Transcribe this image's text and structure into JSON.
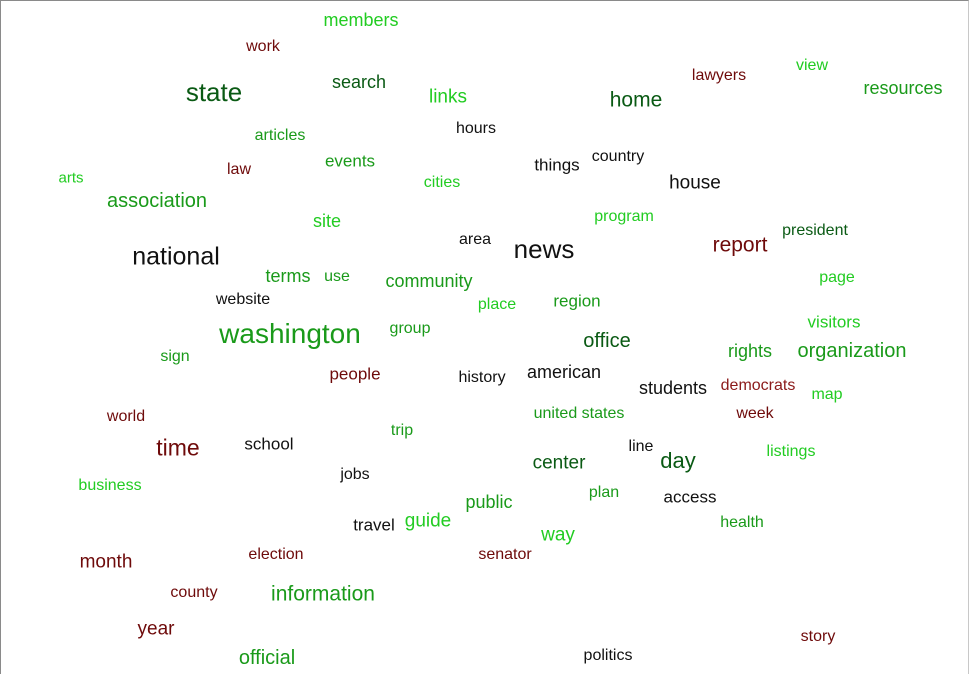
{
  "colors": {
    "black": "#111111",
    "dark_green": "#0a5a14",
    "green": "#1a9a1a",
    "bright_green": "#22cc22",
    "dark_red": "#6e0a0a",
    "red": "#8b1a1a"
  },
  "words": [
    {
      "text": "members",
      "color": "bright_green"
    },
    {
      "text": "work",
      "color": "dark_red"
    },
    {
      "text": "lawyers",
      "color": "dark_red"
    },
    {
      "text": "view",
      "color": "bright_green"
    },
    {
      "text": "resources",
      "color": "green"
    },
    {
      "text": "state",
      "color": "dark_green"
    },
    {
      "text": "search",
      "color": "dark_green"
    },
    {
      "text": "links",
      "color": "bright_green"
    },
    {
      "text": "home",
      "color": "dark_green"
    },
    {
      "text": "hours",
      "color": "black"
    },
    {
      "text": "articles",
      "color": "green"
    },
    {
      "text": "events",
      "color": "green"
    },
    {
      "text": "law",
      "color": "dark_red"
    },
    {
      "text": "things",
      "color": "black"
    },
    {
      "text": "country",
      "color": "black"
    },
    {
      "text": "arts",
      "color": "bright_green"
    },
    {
      "text": "cities",
      "color": "bright_green"
    },
    {
      "text": "house",
      "color": "black"
    },
    {
      "text": "association",
      "color": "green"
    },
    {
      "text": "site",
      "color": "bright_green"
    },
    {
      "text": "program",
      "color": "bright_green"
    },
    {
      "text": "president",
      "color": "dark_green"
    },
    {
      "text": "area",
      "color": "black"
    },
    {
      "text": "news",
      "color": "black"
    },
    {
      "text": "report",
      "color": "dark_red"
    },
    {
      "text": "national",
      "color": "black"
    },
    {
      "text": "terms",
      "color": "green"
    },
    {
      "text": "use",
      "color": "green"
    },
    {
      "text": "community",
      "color": "green"
    },
    {
      "text": "page",
      "color": "bright_green"
    },
    {
      "text": "website",
      "color": "black"
    },
    {
      "text": "place",
      "color": "bright_green"
    },
    {
      "text": "region",
      "color": "green"
    },
    {
      "text": "visitors",
      "color": "bright_green"
    },
    {
      "text": "washington",
      "color": "green"
    },
    {
      "text": "group",
      "color": "green"
    },
    {
      "text": "office",
      "color": "dark_green"
    },
    {
      "text": "rights",
      "color": "green"
    },
    {
      "text": "organization",
      "color": "green"
    },
    {
      "text": "sign",
      "color": "green"
    },
    {
      "text": "people",
      "color": "dark_red"
    },
    {
      "text": "history",
      "color": "black"
    },
    {
      "text": "american",
      "color": "black"
    },
    {
      "text": "students",
      "color": "black"
    },
    {
      "text": "democrats",
      "color": "red"
    },
    {
      "text": "map",
      "color": "bright_green"
    },
    {
      "text": "world",
      "color": "dark_red"
    },
    {
      "text": "united states",
      "color": "green"
    },
    {
      "text": "week",
      "color": "dark_red"
    },
    {
      "text": "trip",
      "color": "green"
    },
    {
      "text": "time",
      "color": "dark_red"
    },
    {
      "text": "school",
      "color": "black"
    },
    {
      "text": "line",
      "color": "black"
    },
    {
      "text": "listings",
      "color": "bright_green"
    },
    {
      "text": "center",
      "color": "dark_green"
    },
    {
      "text": "day",
      "color": "dark_green"
    },
    {
      "text": "jobs",
      "color": "black"
    },
    {
      "text": "business",
      "color": "bright_green"
    },
    {
      "text": "plan",
      "color": "green"
    },
    {
      "text": "access",
      "color": "black"
    },
    {
      "text": "public",
      "color": "green"
    },
    {
      "text": "travel",
      "color": "black"
    },
    {
      "text": "guide",
      "color": "bright_green"
    },
    {
      "text": "health",
      "color": "green"
    },
    {
      "text": "way",
      "color": "bright_green"
    },
    {
      "text": "month",
      "color": "dark_red"
    },
    {
      "text": "election",
      "color": "dark_red"
    },
    {
      "text": "senator",
      "color": "dark_red"
    },
    {
      "text": "county",
      "color": "dark_red"
    },
    {
      "text": "information",
      "color": "green"
    },
    {
      "text": "year",
      "color": "dark_red"
    },
    {
      "text": "story",
      "color": "dark_red"
    },
    {
      "text": "official",
      "color": "green"
    },
    {
      "text": "politics",
      "color": "black"
    }
  ]
}
